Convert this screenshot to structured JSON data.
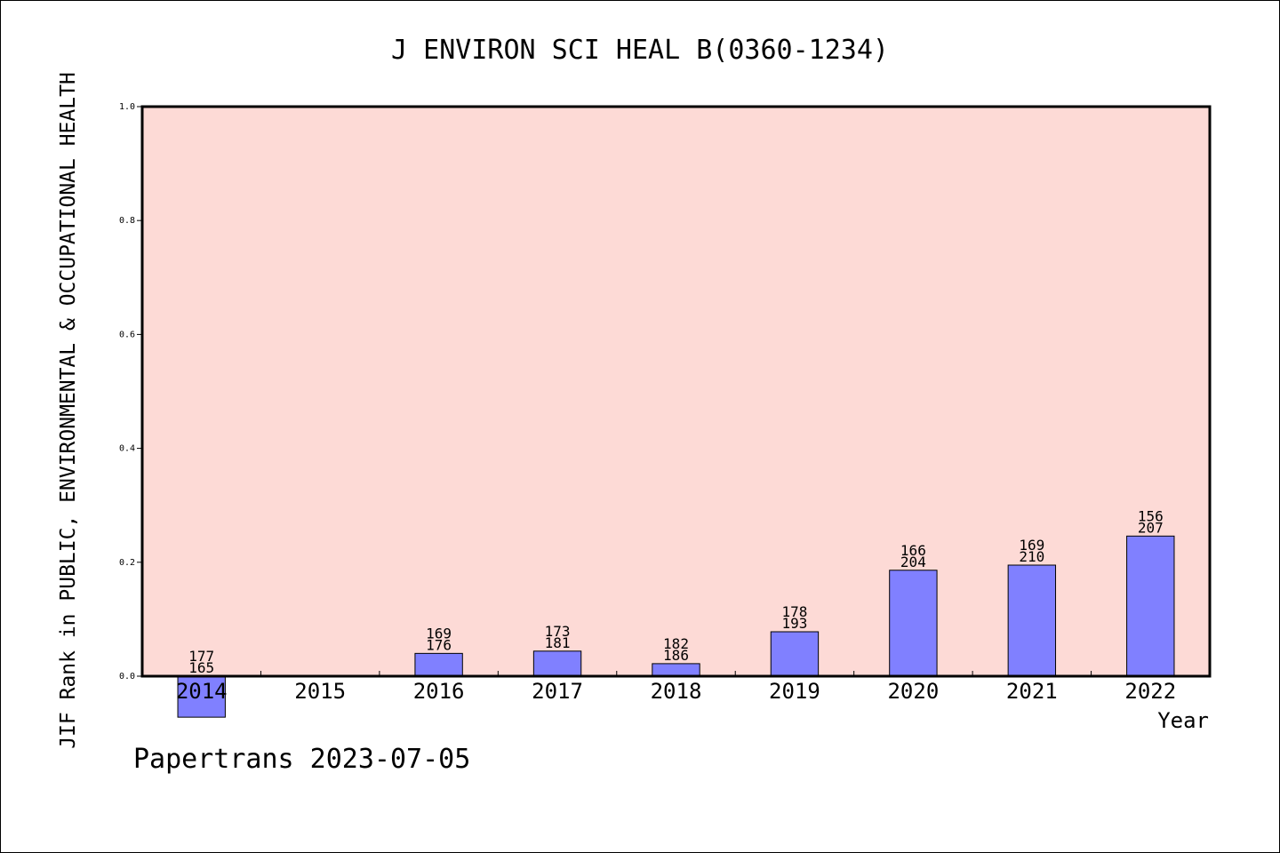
{
  "chart_data": {
    "type": "bar",
    "title": "J ENVIRON SCI HEAL B(0360-1234)",
    "ylabel": "JIF Rank in PUBLIC, ENVIRONMENTAL & OCCUPATIONAL HEALTH",
    "xlabel": "Year",
    "ylim": [
      0.0,
      1.0
    ],
    "yticks": [
      "0.0",
      "0.2",
      "0.4",
      "0.6",
      "0.8",
      "1.0"
    ],
    "categories": [
      "2014",
      "2015",
      "2016",
      "2017",
      "2018",
      "2019",
      "2020",
      "2021",
      "2022"
    ],
    "values": [
      -0.072,
      null,
      0.04,
      0.044,
      0.022,
      0.078,
      0.186,
      0.195,
      0.246
    ],
    "rank_labels": [
      "177",
      "",
      "169",
      "173",
      "182",
      "178",
      "166",
      "169",
      "156"
    ],
    "total_labels": [
      "165",
      "",
      "176",
      "181",
      "186",
      "193",
      "204",
      "210",
      "207"
    ],
    "grid": false,
    "legend": "none",
    "colors": {
      "plot_bg": "#fddad6",
      "bar": "#8080ff",
      "axis": "#000000"
    }
  },
  "footer": {
    "text": "Papertrans 2023-07-05"
  }
}
